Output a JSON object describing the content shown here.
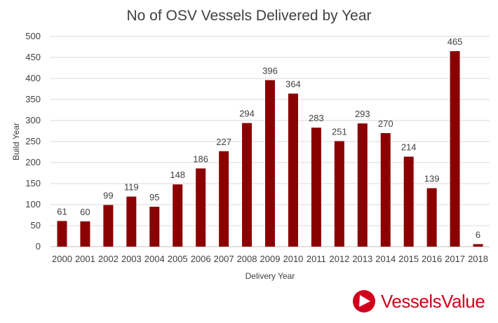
{
  "chart_data": {
    "type": "bar",
    "title": "No of OSV Vessels Delivered by Year",
    "xlabel": "Delivery Year",
    "ylabel": "Build Year",
    "categories": [
      "2000",
      "2001",
      "2002",
      "2003",
      "2004",
      "2005",
      "2006",
      "2007",
      "2008",
      "2009",
      "2010",
      "2011",
      "2012",
      "2013",
      "2014",
      "2015",
      "2016",
      "2017",
      "2018"
    ],
    "values": [
      61,
      60,
      99,
      119,
      95,
      148,
      186,
      227,
      294,
      396,
      364,
      283,
      251,
      293,
      270,
      214,
      139,
      465,
      6
    ],
    "ylim": [
      0,
      500
    ],
    "yticks": [
      0,
      50,
      100,
      150,
      200,
      250,
      300,
      350,
      400,
      450,
      500
    ],
    "grid": true,
    "data_labels": true,
    "bar_color": "#8b0000"
  },
  "logo": {
    "text": "VesselsValue",
    "color": "#d0021b"
  }
}
